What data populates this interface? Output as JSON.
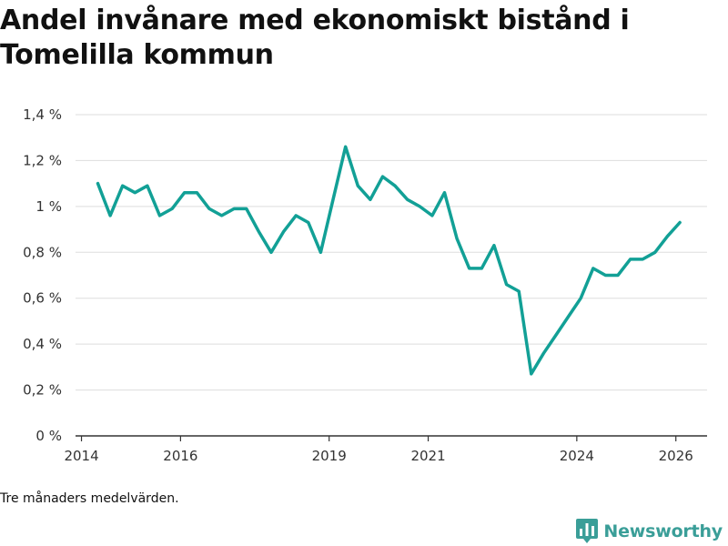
{
  "chart_data": {
    "type": "line",
    "title": "Andel invånare med ekonomiskt bistånd i Tomelilla kommun",
    "xlabel": "",
    "ylabel": "",
    "ylim": [
      0,
      1.4
    ],
    "xlim": [
      2013.88,
      2026.63
    ],
    "y_ticks": [
      0,
      0.2,
      0.4,
      0.6,
      0.8,
      1.0,
      1.2,
      1.4
    ],
    "y_tick_labels": [
      "0 %",
      "0,2 %",
      "0,4 %",
      "0,6 %",
      "0,8 %",
      "1 %",
      "1,2 %",
      "1,4 %"
    ],
    "x_ticks": [
      2014,
      2016,
      2019,
      2021,
      2024,
      2026
    ],
    "x_tick_labels": [
      "2014",
      "2016",
      "2019",
      "2021",
      "2024",
      "2026"
    ],
    "grid": true,
    "series": [
      {
        "name": "Andel invånare med ekonomiskt bistånd",
        "color": "#12a096",
        "x": [
          2014.33,
          2014.58,
          2014.83,
          2015.08,
          2015.33,
          2015.58,
          2015.83,
          2016.08,
          2016.33,
          2016.58,
          2016.83,
          2017.08,
          2017.33,
          2017.58,
          2017.83,
          2018.08,
          2018.33,
          2018.58,
          2018.83,
          2019.08,
          2019.33,
          2019.58,
          2019.83,
          2020.08,
          2020.33,
          2020.58,
          2020.83,
          2021.08,
          2021.33,
          2021.58,
          2021.83,
          2022.08,
          2022.33,
          2022.58,
          2022.83,
          2023.08,
          2023.33,
          2023.58,
          2023.83,
          2024.08,
          2024.33,
          2024.58,
          2024.83,
          2025.08,
          2025.33,
          2025.58,
          2025.83,
          2026.08
        ],
        "values": [
          1.1,
          0.96,
          1.09,
          1.06,
          1.09,
          0.96,
          0.99,
          1.06,
          1.06,
          0.99,
          0.96,
          0.99,
          0.99,
          0.89,
          0.8,
          0.89,
          0.96,
          0.93,
          0.8,
          1.03,
          1.26,
          1.09,
          1.03,
          1.13,
          1.09,
          1.03,
          1.0,
          0.96,
          1.06,
          0.86,
          0.73,
          0.73,
          0.83,
          0.66,
          0.63,
          0.27,
          0.36,
          0.44,
          0.52,
          0.6,
          0.73,
          0.7,
          0.7,
          0.77,
          0.77,
          0.8,
          0.87,
          0.93
        ]
      }
    ]
  },
  "footer": {
    "note": "Tre månaders medelvärden.",
    "brand": "Newsworthy"
  },
  "colors": {
    "line": "#12a096",
    "grid": "#dddddd",
    "axis": "#333333",
    "brand": "#3a9e98"
  }
}
